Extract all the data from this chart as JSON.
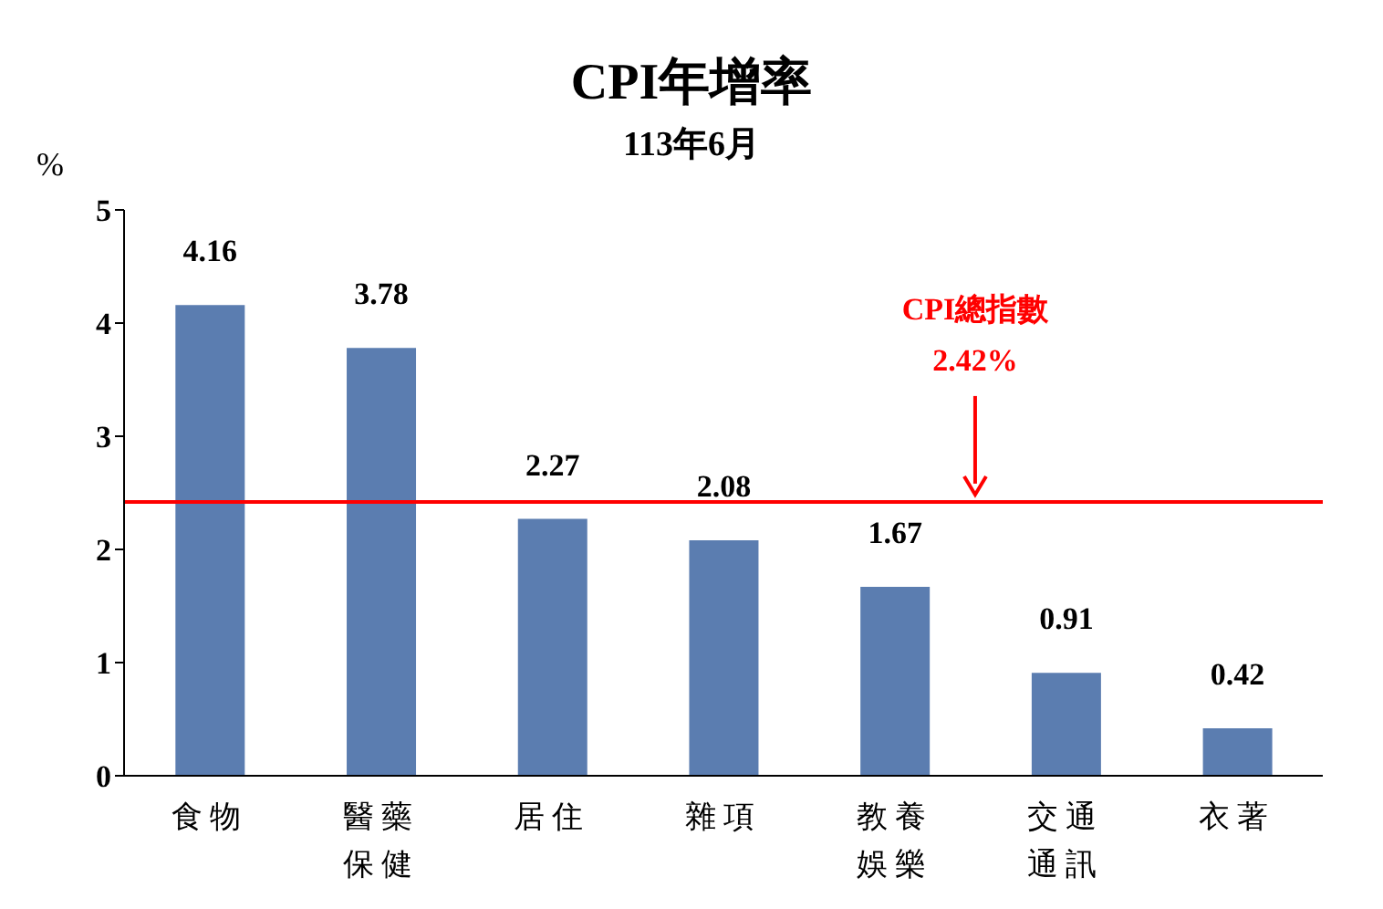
{
  "chart_data": {
    "type": "bar",
    "title": "CPI年增率",
    "subtitle": "113年6月",
    "ylabel": "%",
    "categories": [
      "食物",
      "醫藥保健",
      "居住",
      "雜項",
      "教養娛樂",
      "交通通訊",
      "衣著"
    ],
    "values": [
      4.16,
      3.78,
      2.27,
      2.08,
      1.67,
      0.91,
      0.42
    ],
    "color": "#5b7db0",
    "ylim": [
      0,
      5
    ],
    "yticks": [
      0,
      1,
      2,
      3,
      4,
      5
    ],
    "data_labels": true,
    "ref_lines": [
      {
        "axis": "y",
        "value": 2.42,
        "label": "CPI總指數\n2.42%",
        "color": "#ff0000"
      }
    ]
  }
}
